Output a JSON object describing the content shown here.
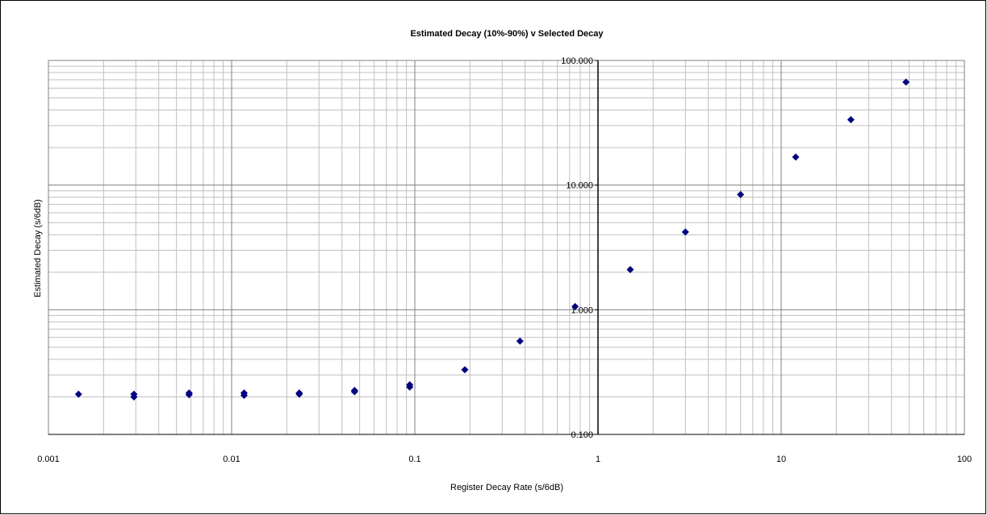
{
  "chart_data": {
    "type": "scatter",
    "title": "Estimated Decay (10%-90%) v Selected Decay",
    "xlabel": "Register Decay Rate (s/6dB)",
    "ylabel": "Estimated Decay (s/6dB)",
    "x_scale": "log",
    "y_scale": "log",
    "xlim": [
      0.001,
      100
    ],
    "ylim": [
      0.1,
      100
    ],
    "x_tick_labels": [
      "0.001",
      "0.01",
      "0.1",
      "1",
      "10",
      "100"
    ],
    "y_tick_labels": [
      "0.100",
      "1.000",
      "10.000",
      "100.000"
    ],
    "grid": true,
    "legend": "none",
    "marker_color": "#000080",
    "series": [
      {
        "points": [
          [
            0.00146,
            0.21
          ],
          [
            0.00293,
            0.21
          ],
          [
            0.00293,
            0.2
          ],
          [
            0.00586,
            0.215
          ],
          [
            0.00586,
            0.208
          ],
          [
            0.0117,
            0.215
          ],
          [
            0.0117,
            0.206
          ],
          [
            0.0234,
            0.215
          ],
          [
            0.0234,
            0.21
          ],
          [
            0.0469,
            0.225
          ],
          [
            0.0469,
            0.22
          ],
          [
            0.0938,
            0.25
          ],
          [
            0.0938,
            0.24
          ],
          [
            0.1875,
            0.33
          ],
          [
            0.375,
            0.56
          ],
          [
            0.75,
            1.06
          ],
          [
            1.5,
            2.1
          ],
          [
            3.0,
            4.2
          ],
          [
            6.0,
            8.4
          ],
          [
            12.0,
            16.8
          ],
          [
            24.0,
            33.5
          ],
          [
            48.0,
            67.0
          ]
        ]
      }
    ]
  }
}
